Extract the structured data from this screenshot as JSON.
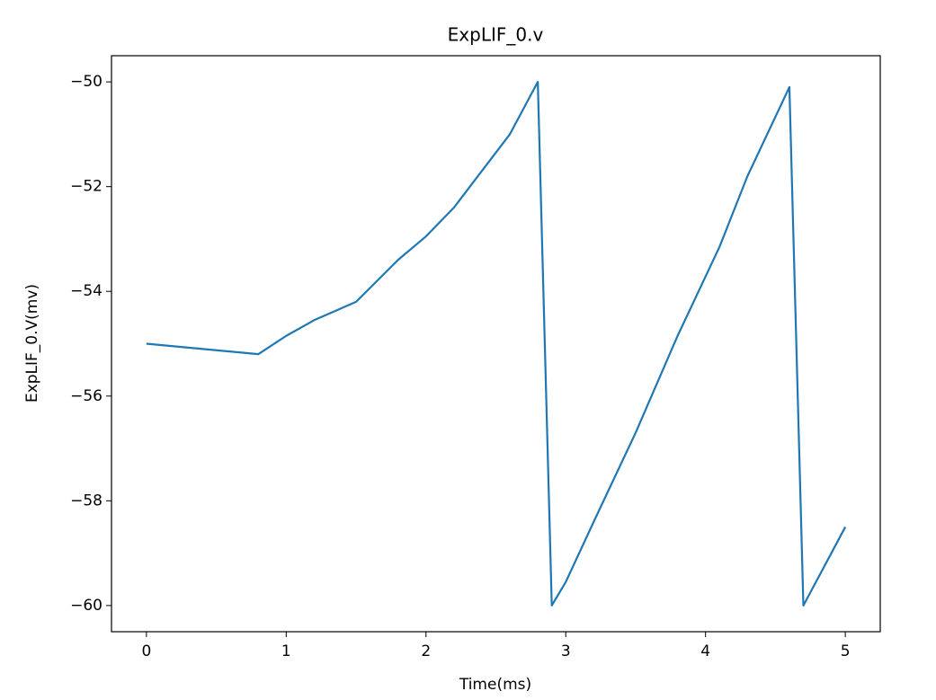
{
  "chart_data": {
    "type": "line",
    "title": "ExpLIF_0.v",
    "x_label": "Time(ms)",
    "y_label": "ExpLIF_0.V(mv)",
    "x": [
      0,
      0.8,
      1.0,
      1.2,
      1.5,
      1.8,
      2.0,
      2.2,
      2.4,
      2.6,
      2.8,
      2.9,
      3.0,
      3.2,
      3.5,
      3.8,
      4.1,
      4.3,
      4.6,
      4.7,
      5.0
    ],
    "series": [
      {
        "name": "ExpLIF_0.v",
        "color": "#1f77b4",
        "values": [
          -55.0,
          -55.2,
          -54.85,
          -54.55,
          -54.2,
          -53.4,
          -52.95,
          -52.4,
          -51.7,
          -51.0,
          -50.0,
          -60.0,
          -59.55,
          -58.4,
          -56.7,
          -54.85,
          -53.15,
          -51.8,
          -50.1,
          -60.0,
          -58.5
        ]
      }
    ],
    "xlim": [
      -0.25,
      5.25
    ],
    "xticks": [
      0,
      1,
      2,
      3,
      4,
      5
    ],
    "ylim": [
      -60.5,
      -49.5
    ],
    "yticks": [
      {
        "value": -60,
        "label": "−60"
      },
      {
        "value": -58,
        "label": "−58"
      },
      {
        "value": -56,
        "label": "−56"
      },
      {
        "value": -54,
        "label": "−54"
      },
      {
        "value": -52,
        "label": "−52"
      },
      {
        "value": -50,
        "label": "−50"
      }
    ],
    "grid": false
  }
}
